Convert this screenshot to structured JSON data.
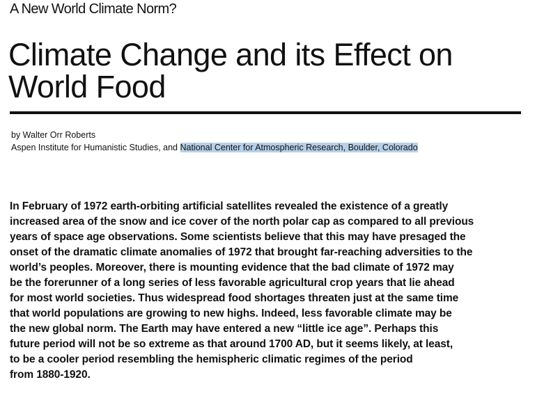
{
  "kicker": "A New World Climate Norm?",
  "title": {
    "line1": "Climate Change and its Effect on",
    "line2": "World Food"
  },
  "byline": {
    "author": "by Walter Orr Roberts",
    "affiliation_prefix": "Aspen Institute for Humanistic Studies, and ",
    "affiliation_highlighted": "National Center for Atmospheric Research, Boulder, Colorado",
    "highlight_color": "#b7d0e8"
  },
  "body": {
    "lines": [
      "In February of 1972 earth-orbiting artificial satellites revealed the existence of a greatly",
      "increased area of the snow and ice cover of the north polar cap as compared to all previous",
      "years of space age observations.  Some scientists believe that this may have presaged the",
      "onset of the dramatic climate anomalies of 1972 that brought far-reaching adversities to the",
      "world’s peoples.  Moreover, there is mounting evidence that the bad climate of 1972 may",
      "be the forerunner of a long series of less favorable agricultural crop years that lie ahead",
      "for most world societies.  Thus widespread food shortages threaten just at the same time",
      "that world populations are growing to new highs.  Indeed, less favorable climate may be",
      "the new global norm.  The Earth may have entered a new “little ice age”.  Perhaps this",
      "future period will not be so extreme as that around 1700 AD, but it seems likely, at least,",
      "to be a cooler period resembling the hemispheric climatic regimes of the period",
      "from 1880-1920."
    ]
  }
}
